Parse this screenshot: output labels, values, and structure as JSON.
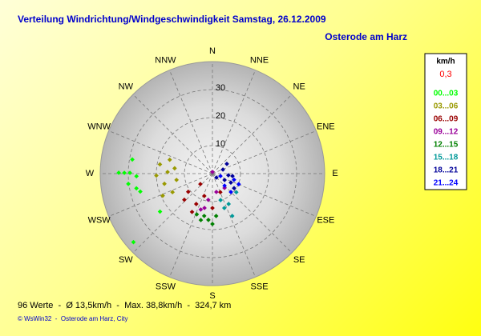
{
  "chart_data": {
    "type": "polar-scatter",
    "title": "Verteilung Windrichtung/Windgeschwindigkeit  Samstag, 26.12.2009",
    "subtitle": "Osterode am Harz",
    "rlim": [
      0,
      40
    ],
    "rticks": [
      10,
      20,
      30
    ],
    "direction_labels": [
      "N",
      "NNE",
      "NE",
      "ENE",
      "E",
      "ESE",
      "SE",
      "SSE",
      "S",
      "SSW",
      "SW",
      "WSW",
      "W",
      "WNW",
      "NW",
      "NNW"
    ],
    "legend_title": "km/h",
    "calm_label": "0,3",
    "calm_color": "#ff0000",
    "series": [
      {
        "name": "00...03",
        "color": "#00ff00",
        "directions": [
          270.5,
          270.5,
          270.5,
          263,
          259,
          280,
          268,
          256,
          229,
          234
        ],
        "values": [
          33.4,
          31.4,
          29.4,
          30.2,
          27.6,
          29,
          27.1,
          26.5,
          37.3,
          23.1
        ]
      },
      {
        "name": "03...06",
        "color": "#999900",
        "directions": [
          280,
          272,
          258,
          245,
          260,
          268,
          288,
          246,
          278
        ],
        "values": [
          19,
          16,
          17.5,
          15.7,
          13,
          20,
          16,
          19.4,
          13.6
        ]
      },
      {
        "name": "06...09",
        "color": "#990000",
        "directions": [
          233,
          208,
          200,
          208,
          180,
          229,
          157,
          227
        ],
        "values": [
          10.8,
          12.3,
          8.5,
          15.5,
          12.3,
          5.7,
          7.2,
          13.7
        ]
      },
      {
        "name": "09...12",
        "color": "#990099",
        "directions": [
          193,
          189,
          168,
          140,
          198,
          0
        ],
        "values": [
          12.6,
          9.5,
          6.7,
          6.7,
          13.5,
          0.6
        ]
      },
      {
        "name": "12...15",
        "color": "#008000",
        "directions": [
          191,
          180,
          201,
          185,
          175,
          194
        ],
        "values": [
          15.4,
          18,
          15.6,
          16.6,
          15.2,
          17.1
        ]
      },
      {
        "name": "15...18",
        "color": "#009999",
        "directions": [
          155,
          152,
          128,
          161,
          163
        ],
        "values": [
          16.7,
          12.3,
          10.8,
          13,
          9.9
        ]
      },
      {
        "name": "18...21",
        "color": "#000099",
        "directions": [
          96,
          97,
          118,
          124,
          69,
          116,
          135,
          56
        ],
        "values": [
          5.7,
          7.2,
          4.9,
          9.3,
          4,
          7.3,
          2,
          6.2
        ]
      },
      {
        "name": "21...24",
        "color": "#0000ff",
        "directions": [
          135,
          106,
          135,
          107,
          112
        ],
        "values": [
          6.1,
          8,
          9.3,
          3,
          10.1
        ]
      }
    ],
    "footer": "96 Werte  -  Ø 13,5km/h  -  Max. 38,8km/h  -  324,7 km",
    "copyright": "© WsWin32  -  Osterode am Harz, City"
  }
}
